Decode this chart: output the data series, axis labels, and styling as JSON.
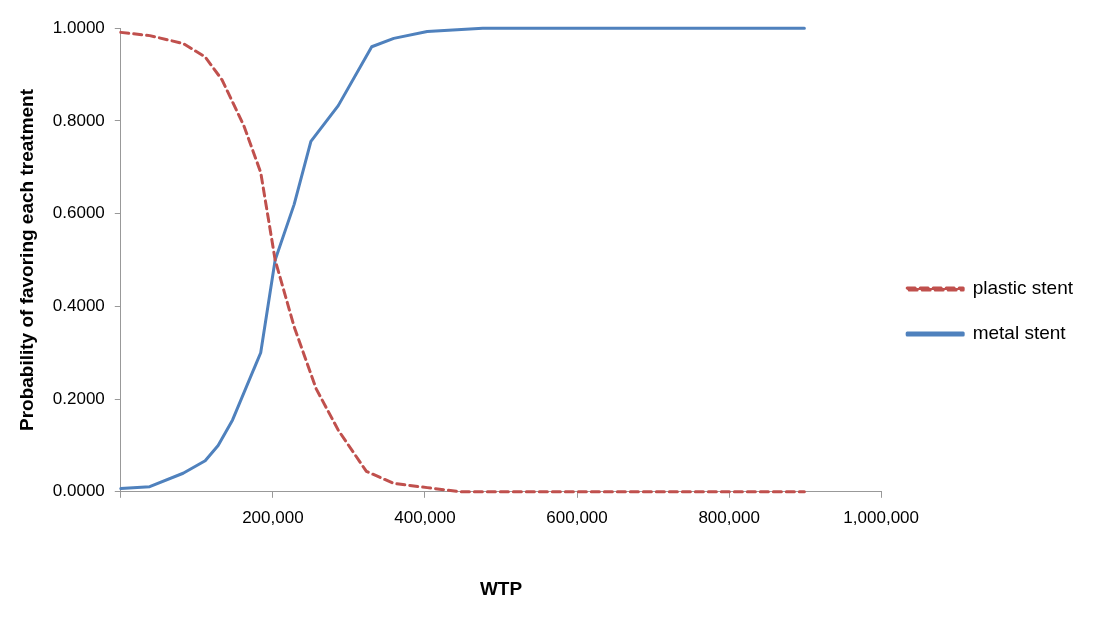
{
  "chart_data": {
    "type": "line",
    "xlabel": "WTP",
    "ylabel": "Probability of favoring each treatment",
    "xlim": [
      0,
      1000000
    ],
    "xticks": [
      {
        "value": 0,
        "label": null
      },
      {
        "value": 200000,
        "label": "200,000"
      },
      {
        "value": 400000,
        "label": "400,000"
      },
      {
        "value": 600000,
        "label": "600,000"
      },
      {
        "value": 800000,
        "label": "800,000"
      },
      {
        "value": 1000000,
        "label": "1,000,000"
      }
    ],
    "ylim": [
      0,
      1
    ],
    "yticks": [
      {
        "value": 0,
        "label": "0.0000"
      },
      {
        "value": 0.2,
        "label": "0.2000"
      },
      {
        "value": 0.4,
        "label": "0.4000"
      },
      {
        "value": 0.6,
        "label": "0.6000"
      },
      {
        "value": 0.8,
        "label": "0.8000"
      },
      {
        "value": 1,
        "label": "1.0000"
      }
    ],
    "grid": false,
    "legend": "right",
    "marker": "none",
    "series": [
      {
        "name": "plastic stent",
        "color": "#c0504d",
        "line_style": "dashed",
        "x": [
          0,
          38000,
          82000,
          111000,
          133000,
          162000,
          184000,
          203000,
          228000,
          257000,
          286000,
          323000,
          359000,
          403000,
          447000,
          600000,
          899000
        ],
        "values": [
          0.991,
          0.984,
          0.967,
          0.938,
          0.889,
          0.789,
          0.689,
          0.5,
          0.356,
          0.222,
          0.133,
          0.044,
          0.018,
          0.009,
          0,
          0,
          0
        ]
      },
      {
        "name": "metal stent",
        "color": "#4f81bd",
        "line_style": "solid",
        "x": [
          0,
          38000,
          82000,
          111000,
          128000,
          147000,
          184000,
          203000,
          228000,
          250000,
          286000,
          330000,
          359000,
          403000,
          476000,
          600000,
          899000
        ],
        "values": [
          0.007,
          0.011,
          0.04,
          0.067,
          0.1,
          0.155,
          0.3,
          0.5,
          0.62,
          0.756,
          0.833,
          0.96,
          0.978,
          0.993,
          1,
          1,
          1
        ]
      }
    ]
  }
}
